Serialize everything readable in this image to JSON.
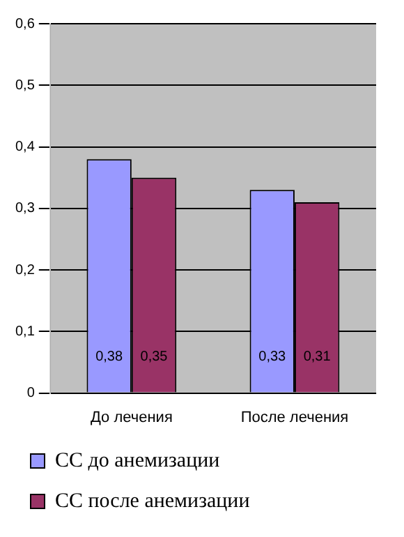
{
  "chart_data": {
    "type": "bar",
    "categories": [
      "До лечения",
      "После лечения"
    ],
    "series": [
      {
        "name": "СС до анемизации",
        "color": "#9999ff",
        "values": [
          0.38,
          0.33
        ],
        "value_labels": [
          "0,38",
          "0,33"
        ]
      },
      {
        "name": "СС после анемизации",
        "color": "#993366",
        "values": [
          0.35,
          0.31
        ],
        "value_labels": [
          "0,35",
          "0,31"
        ]
      }
    ],
    "ylim": [
      0,
      0.6
    ],
    "yticks": [
      0,
      {
        "value": 0.1,
        "label": "0,1"
      },
      {
        "value": 0.2,
        "label": "0,2"
      },
      {
        "value": 0.3,
        "label": "0,3"
      },
      {
        "value": 0.4,
        "label": "0,4"
      },
      {
        "value": 0.5,
        "label": "0,5"
      },
      {
        "value": 0.6,
        "label": "0,6"
      }
    ],
    "grid": "y",
    "legend": "bottom"
  }
}
